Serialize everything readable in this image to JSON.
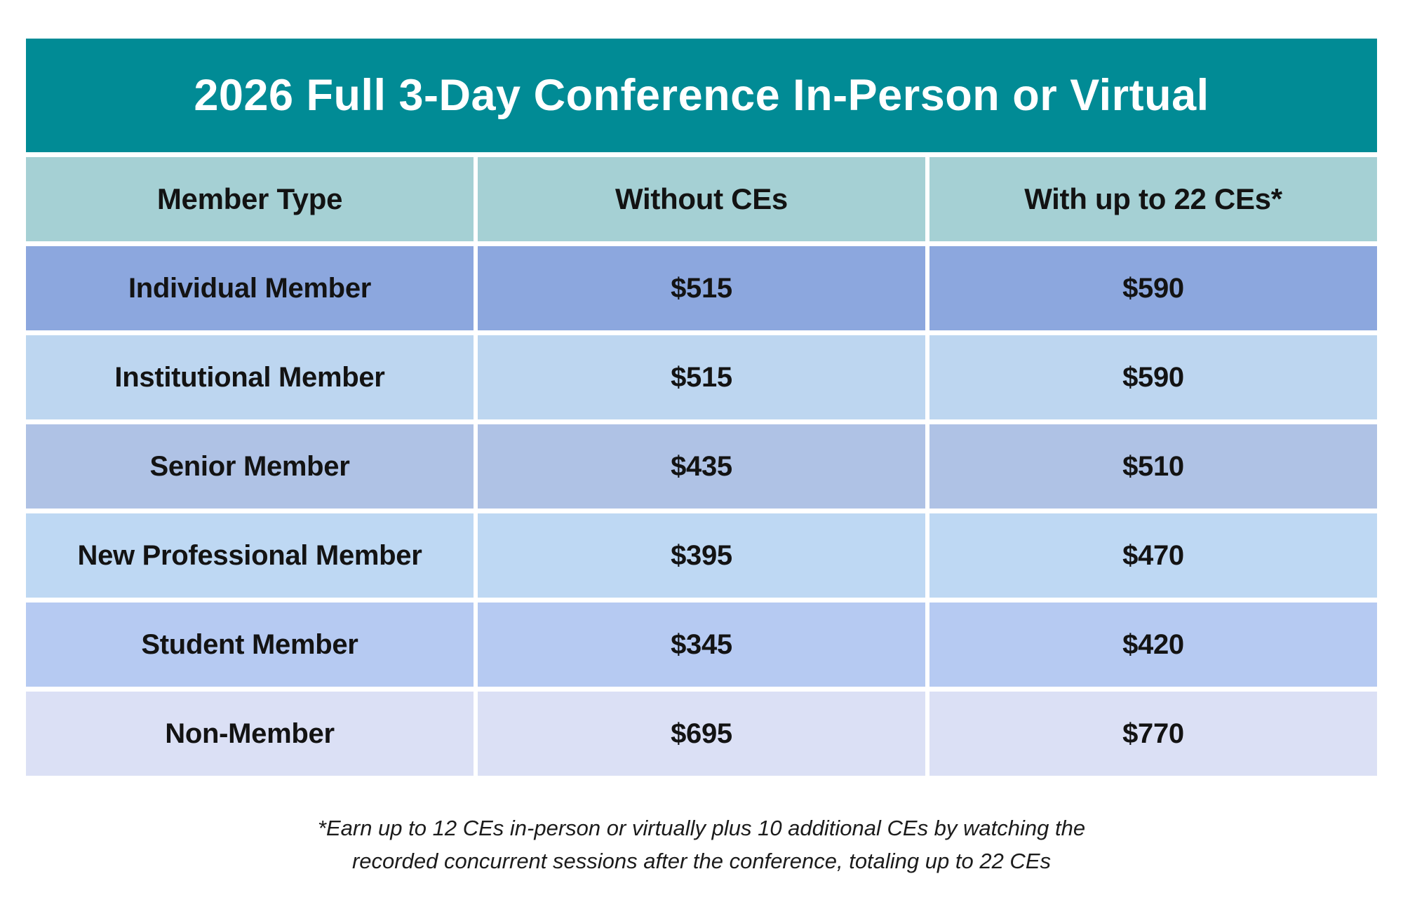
{
  "title": "2026 Full 3-Day Conference In-Person or Virtual",
  "table": {
    "columns": {
      "member_type": "Member Type",
      "without_ces": "Without CEs",
      "with_ces": "With up to 22 CEs*"
    },
    "rows": [
      {
        "member_type": "Individual Member",
        "without_ces": "$515",
        "with_ces": "$590"
      },
      {
        "member_type": "Institutional Member",
        "without_ces": "$515",
        "with_ces": "$590"
      },
      {
        "member_type": "Senior Member",
        "without_ces": "$435",
        "with_ces": "$510"
      },
      {
        "member_type": "New Professional Member",
        "without_ces": "$395",
        "with_ces": "$470"
      },
      {
        "member_type": "Student Member",
        "without_ces": "$345",
        "with_ces": "$420"
      },
      {
        "member_type": "Non-Member",
        "without_ces": "$695",
        "with_ces": "$770"
      }
    ]
  },
  "footnote": {
    "line1": "*Earn up to 12 CEs in-person or virtually plus 10 additional CEs by watching the",
    "line2": "recorded concurrent sessions after the conference, totaling up to 22 CEs"
  },
  "colors": {
    "title_bar_bg": "#018B95",
    "title_text": "#FFFFFF",
    "column_header_bg": "#A5D0D4",
    "row_backgrounds": [
      "#8CA7DE",
      "#BDD6F0",
      "#AFC2E5",
      "#BED8F3",
      "#B6CAF2",
      "#DBE0F5"
    ],
    "cell_text": "#131313"
  }
}
